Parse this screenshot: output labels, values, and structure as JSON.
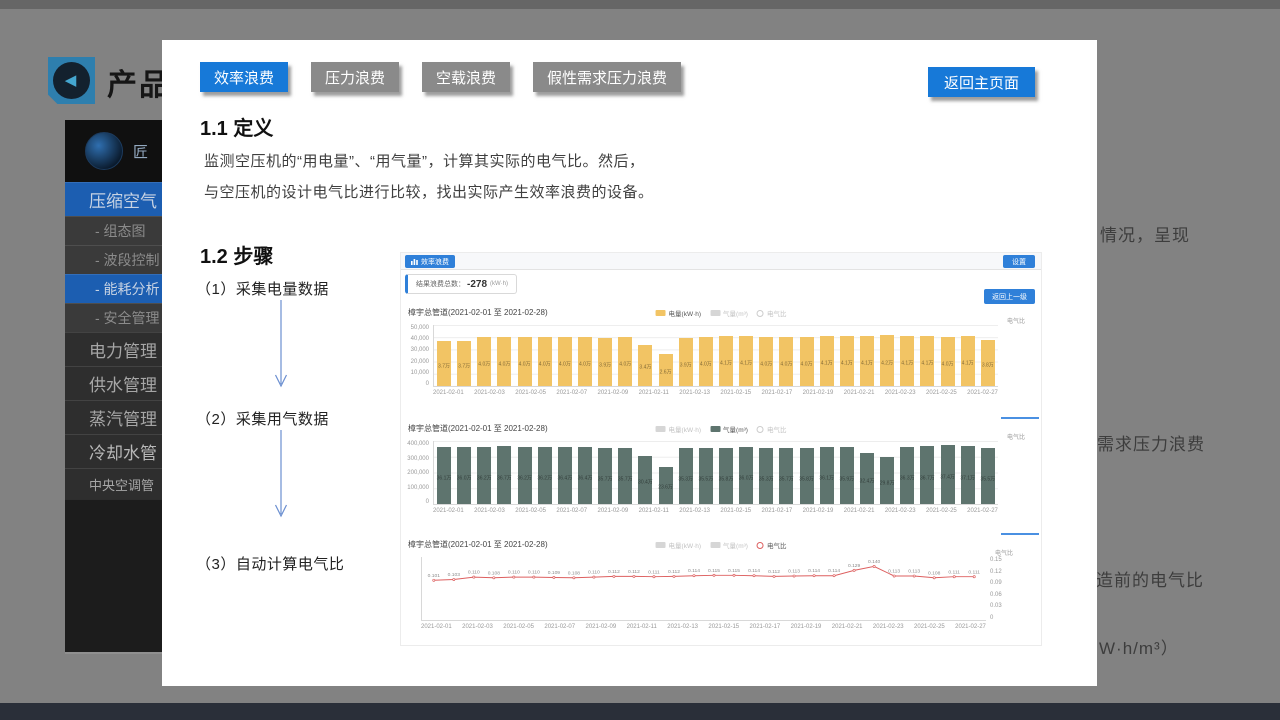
{
  "background": {
    "logo_title": "产品",
    "logo_glyph": "◀",
    "sidebar_header": "匠",
    "sidebar_items": [
      {
        "label": "压缩空气",
        "type": "group",
        "active": true
      },
      {
        "label": "- 组态图",
        "type": "sub",
        "active": false
      },
      {
        "label": "- 波段控制",
        "type": "sub",
        "active": false
      },
      {
        "label": "- 能耗分析",
        "type": "sub",
        "active": true
      },
      {
        "label": "- 安全管理",
        "type": "sub",
        "active": false
      },
      {
        "label": "电力管理",
        "type": "group",
        "active": false
      },
      {
        "label": "供水管理",
        "type": "group",
        "active": false
      },
      {
        "label": "蒸汽管理",
        "type": "group",
        "active": false
      },
      {
        "label": "冷却水管",
        "type": "group",
        "active": false,
        "bright": true
      },
      {
        "label": "中央空调管",
        "type": "group",
        "active": false,
        "small": true
      }
    ],
    "right_fragments": [
      "情况，呈现",
      "需求压力浪费",
      "造前的电气比",
      "W·h/m³）"
    ]
  },
  "panel": {
    "tabs": [
      {
        "label": "效率浪费",
        "active": true
      },
      {
        "label": "压力浪费",
        "active": false
      },
      {
        "label": "空载浪费",
        "active": false
      },
      {
        "label": "假性需求压力浪费",
        "active": false
      }
    ],
    "back_button": "返回主页面",
    "def_title": "1.1 定义",
    "def_line1": "监测空压机的“用电量”、“用气量”，计算其实际的电气比。然后，",
    "def_line2": "与空压机的设计电气比进行比较，找出实际产生效率浪费的设备。",
    "steps_title": "1.2 步骤",
    "steps": [
      "（1）采集电量数据",
      "（2）采集用气数据",
      "（3）自动计算电气比"
    ]
  },
  "dashboard": {
    "badge": "效率浪费",
    "settings_button": "设置",
    "result_label": "结果浪费总数：",
    "result_value": "-278",
    "result_unit": "(kW·h)",
    "back_level_button": "返回上一级",
    "accent_color": "#2f80d9"
  },
  "chart_data": [
    {
      "type": "bar",
      "title": "樟宇总管道(2021-02-01 至 2021-02-28)",
      "ylabel_right": "电气比",
      "color": "#f2c464",
      "ymax": 50000,
      "yticks": [
        "50,000",
        "40,000",
        "30,000",
        "20,000",
        "10,000",
        "0"
      ],
      "xticks": [
        "2021-02-01",
        "2021-02-03",
        "2021-02-05",
        "2021-02-07",
        "2021-02-09",
        "2021-02-11",
        "2021-02-13",
        "2021-02-15",
        "2021-02-17",
        "2021-02-19",
        "2021-02-21",
        "2021-02-23",
        "2021-02-25",
        "2021-02-27"
      ],
      "values": [
        37000,
        37000,
        40000,
        40000,
        40000,
        40000,
        40000,
        40000,
        39000,
        40000,
        34000,
        26000,
        39000,
        40000,
        41000,
        41000,
        40000,
        40000,
        40000,
        41000,
        41000,
        41000,
        42000,
        41000,
        41000,
        40000,
        41000,
        38000
      ],
      "bar_labels": [
        "3.7万",
        "3.7万",
        "4.0万",
        "4.0万",
        "4.0万",
        "4.0万",
        "4.0万",
        "4.0万",
        "3.9万",
        "4.0万",
        "3.4万",
        "2.6万",
        "3.9万",
        "4.0万",
        "4.1万",
        "4.1万",
        "4.0万",
        "4.0万",
        "4.0万",
        "4.1万",
        "4.1万",
        "4.1万",
        "4.2万",
        "4.1万",
        "4.1万",
        "4.0万",
        "4.1万",
        "3.8万"
      ],
      "legend": [
        {
          "label": "电量(kW·h)",
          "marker": "rect",
          "color": "#f2c464",
          "text_color": "#555555"
        },
        {
          "label": "气量(m³)",
          "marker": "rect",
          "color": "#d6d6d6",
          "text_color": "#c2c2c2"
        },
        {
          "label": "电气比",
          "marker": "circle",
          "color": "#cccccc",
          "text_color": "#c2c2c2"
        }
      ]
    },
    {
      "type": "bar",
      "title": "樟宇总管道(2021-02-01 至 2021-02-28)",
      "ylabel_right": "电气比",
      "color": "#5e746e",
      "ymax": 400000,
      "yticks": [
        "400,000",
        "300,000",
        "200,000",
        "100,000",
        "0"
      ],
      "xticks": [
        "2021-02-01",
        "2021-02-03",
        "2021-02-05",
        "2021-02-07",
        "2021-02-09",
        "2021-02-11",
        "2021-02-13",
        "2021-02-15",
        "2021-02-17",
        "2021-02-19",
        "2021-02-21",
        "2021-02-23",
        "2021-02-25",
        "2021-02-27"
      ],
      "values": [
        361000,
        360000,
        362000,
        367000,
        362000,
        362000,
        364000,
        364000,
        357000,
        357000,
        304000,
        236000,
        353000,
        355000,
        358000,
        360000,
        353000,
        357000,
        358000,
        361000,
        359000,
        324000,
        298000,
        363000,
        367000,
        374000,
        371000,
        355000
      ],
      "bar_labels": [
        "36.1万",
        "36.0万",
        "36.2万",
        "36.7万",
        "36.2万",
        "36.2万",
        "36.4万",
        "36.4万",
        "35.7万",
        "35.7万",
        "30.4万",
        "23.6万",
        "35.3万",
        "35.5万",
        "35.8万",
        "36.0万",
        "35.3万",
        "35.7万",
        "35.8万",
        "36.1万",
        "35.9万",
        "32.4万",
        "29.8万",
        "36.3万",
        "36.7万",
        "37.4万",
        "37.1万",
        "35.5万"
      ],
      "legend": [
        {
          "label": "电量(kW·h)",
          "marker": "rect",
          "color": "#d6d6d6",
          "text_color": "#c2c2c2"
        },
        {
          "label": "气量(m³)",
          "marker": "rect",
          "color": "#5e746e",
          "text_color": "#555555"
        },
        {
          "label": "电气比",
          "marker": "circle",
          "color": "#cccccc",
          "text_color": "#c2c2c2"
        }
      ]
    },
    {
      "type": "line",
      "title": "樟宇总管道(2021-02-01 至 2021-02-28)",
      "ylabel_right": "电气比",
      "color": "#dd5f5f",
      "ymax": 0.15,
      "yticks_right": [
        "0.15",
        "0.12",
        "0.09",
        "0.06",
        "0.03",
        "0"
      ],
      "xticks": [
        "2021-02-01",
        "2021-02-03",
        "2021-02-05",
        "2021-02-07",
        "2021-02-09",
        "2021-02-11",
        "2021-02-13",
        "2021-02-15",
        "2021-02-17",
        "2021-02-19",
        "2021-02-21",
        "2021-02-23",
        "2021-02-25",
        "2021-02-27"
      ],
      "values": [
        0.101,
        0.103,
        0.11,
        0.108,
        0.11,
        0.11,
        0.109,
        0.108,
        0.11,
        0.112,
        0.112,
        0.111,
        0.112,
        0.114,
        0.115,
        0.115,
        0.114,
        0.112,
        0.113,
        0.114,
        0.114,
        0.129,
        0.14,
        0.113,
        0.113,
        0.108,
        0.111,
        0.111
      ],
      "point_labels": [
        "0.101",
        "0.103",
        "0.110",
        "0.108",
        "0.110",
        "0.110",
        "0.109",
        "0.108",
        "0.110",
        "0.112",
        "0.112",
        "0.111",
        "0.112",
        "0.114",
        "0.115",
        "0.115",
        "0.114",
        "0.112",
        "0.113",
        "0.114",
        "0.114",
        "0.129",
        "0.140",
        "0.113",
        "0.113",
        "0.108",
        "0.111",
        "0.111"
      ],
      "legend": [
        {
          "label": "电量(kW·h)",
          "marker": "rect",
          "color": "#d6d6d6",
          "text_color": "#c2c2c2"
        },
        {
          "label": "气量(m³)",
          "marker": "rect",
          "color": "#d6d6d6",
          "text_color": "#c2c2c2"
        },
        {
          "label": "电气比",
          "marker": "circle",
          "color": "#dd5f5f",
          "text_color": "#555555"
        }
      ]
    }
  ]
}
